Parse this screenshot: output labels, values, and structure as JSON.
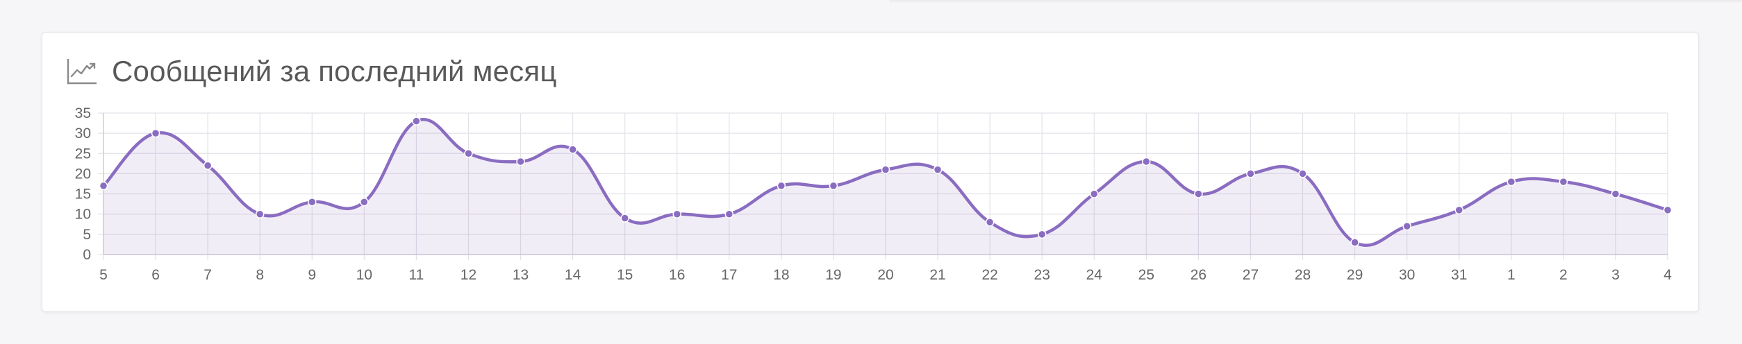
{
  "card": {
    "title": "Сообщений за последний месяц",
    "icon": "line-chart-icon"
  },
  "colors": {
    "line": "#8a6cc1",
    "fill": "rgba(138,108,193,0.12)",
    "point": "#8a6cc1",
    "grid": "#e3e1e8"
  },
  "chart_data": {
    "type": "line",
    "title": "Сообщений за последний месяц",
    "xlabel": "",
    "ylabel": "",
    "categories": [
      "5",
      "6",
      "7",
      "8",
      "9",
      "10",
      "11",
      "12",
      "13",
      "14",
      "15",
      "16",
      "17",
      "18",
      "19",
      "20",
      "21",
      "22",
      "23",
      "24",
      "25",
      "26",
      "27",
      "28",
      "29",
      "30",
      "31",
      "1",
      "2",
      "3",
      "4"
    ],
    "series": [
      {
        "values": [
          17,
          30,
          22,
          10,
          13,
          13,
          33,
          25,
          23,
          26,
          9,
          10,
          10,
          17,
          17,
          21,
          21,
          8,
          5,
          15,
          23,
          15,
          20,
          20,
          3,
          7,
          11,
          18,
          18,
          15,
          11
        ]
      }
    ],
    "ylim": [
      0,
      35
    ],
    "yticks": [
      "0",
      "5",
      "10",
      "15",
      "20",
      "25",
      "30",
      "35"
    ],
    "grid": true,
    "smooth": true
  }
}
